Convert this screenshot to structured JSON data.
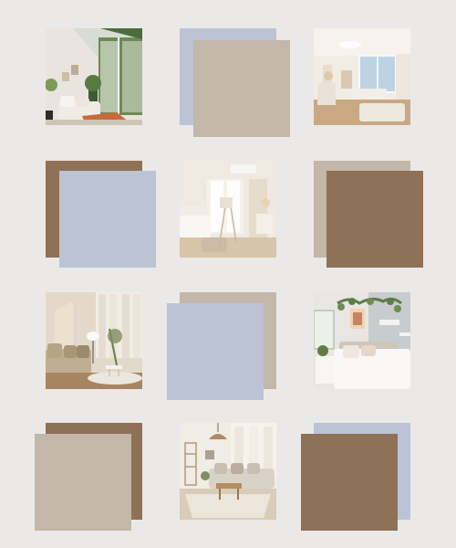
{
  "colors": {
    "background": "#ebe9e7",
    "blue": "#bcc3d4",
    "beige": "#c2b7a8",
    "brown": "#8e7156"
  },
  "photos": {
    "sunroom": {
      "icon": "sunroom-living-photo"
    },
    "bright_bedroom": {
      "icon": "bright-living-room-photo"
    },
    "white_bedroom": {
      "icon": "white-bedroom-photo"
    },
    "beige_living": {
      "icon": "beige-living-room-photo"
    },
    "plant_bedroom": {
      "icon": "plant-bedroom-photo"
    },
    "sofa_living": {
      "icon": "sofa-living-room-photo"
    }
  }
}
